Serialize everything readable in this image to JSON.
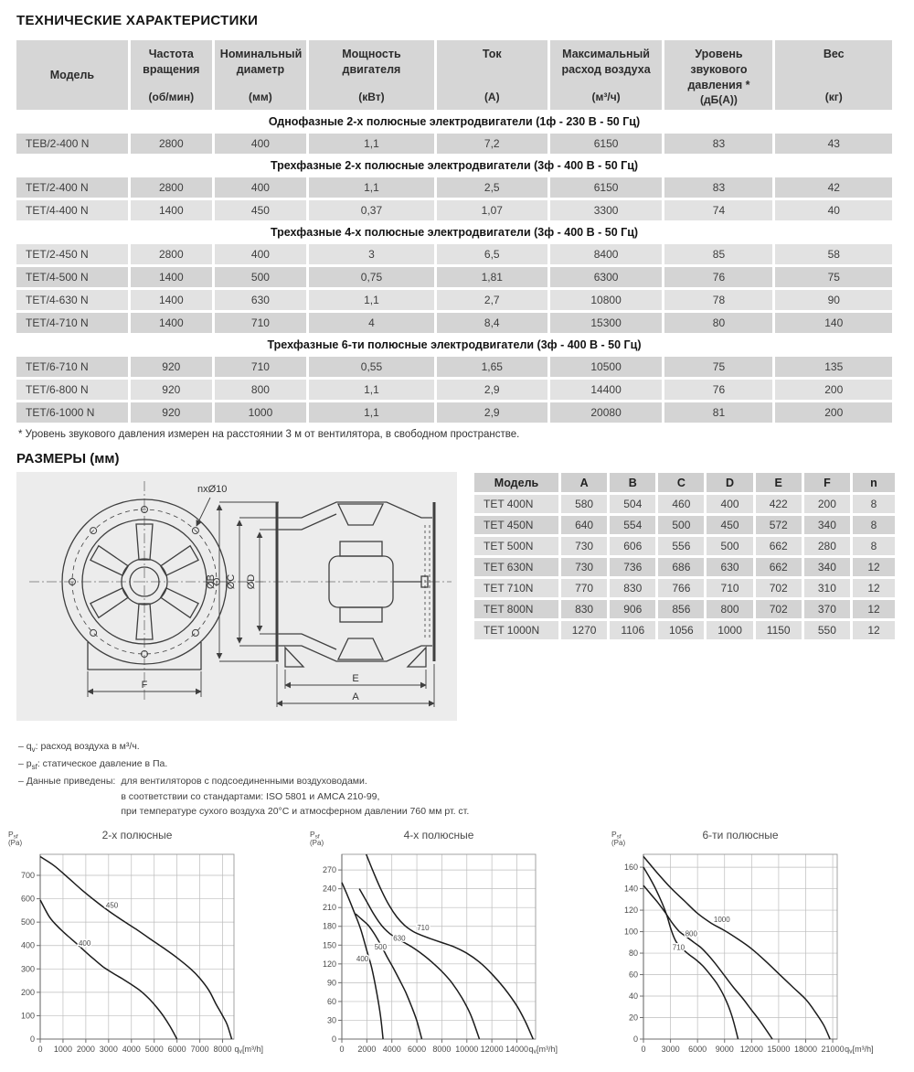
{
  "page": {
    "title": "ТЕХНИЧЕСКИЕ ХАРАКТЕРИСТИКИ",
    "footnote": "* Уровень звукового давления измерен на расстоянии 3 м от вентилятора, в свободном пространстве.",
    "dims_title": "РАЗМЕРЫ (мм)"
  },
  "colors": {
    "row_dark": "#d4d4d4",
    "row_light": "#e2e2e2",
    "header_bg": "#d6d6d6",
    "panel_bg": "#ececec"
  },
  "spec_table": {
    "headers": [
      {
        "title": "Модель",
        "unit": ""
      },
      {
        "title": "Частота вращения",
        "unit": "(об/мин)"
      },
      {
        "title": "Номинальный диаметр",
        "unit": "(мм)"
      },
      {
        "title": "Мощность двигателя",
        "unit": "(кВт)"
      },
      {
        "title": "Ток",
        "unit": "(А)"
      },
      {
        "title": "Максимальный расход воздуха",
        "unit": "(м³/ч)"
      },
      {
        "title": "Уровень звукового давления *",
        "unit": "(дБ(А))"
      },
      {
        "title": "Вес",
        "unit": "(кг)"
      }
    ],
    "sections": [
      {
        "label": "Однофазные 2-х полюсные электродвигатели (1ф - 230 В - 50 Гц)",
        "rows": [
          [
            "TEB/2-400 N",
            "2800",
            "400",
            "1,1",
            "7,2",
            "6150",
            "83",
            "43"
          ]
        ]
      },
      {
        "label": "Трехфазные 2-х полюсные электродвигатели (3ф - 400 В - 50 Гц)",
        "rows": [
          [
            "TET/2-400 N",
            "2800",
            "400",
            "1,1",
            "2,5",
            "6150",
            "83",
            "42"
          ],
          [
            "TET/4-400 N",
            "1400",
            "450",
            "0,37",
            "1,07",
            "3300",
            "74",
            "40"
          ]
        ]
      },
      {
        "label": "Трехфазные 4-х полюсные электродвигатели (3ф - 400 В - 50 Гц)",
        "rows": [
          [
            "TET/2-450 N",
            "2800",
            "400",
            "3",
            "6,5",
            "8400",
            "85",
            "58"
          ],
          [
            "TET/4-500 N",
            "1400",
            "500",
            "0,75",
            "1,81",
            "6300",
            "76",
            "75"
          ],
          [
            "TET/4-630 N",
            "1400",
            "630",
            "1,1",
            "2,7",
            "10800",
            "78",
            "90"
          ],
          [
            "TET/4-710 N",
            "1400",
            "710",
            "4",
            "8,4",
            "15300",
            "80",
            "140"
          ]
        ]
      },
      {
        "label": "Трехфазные 6-ти полюсные электродвигатели (3ф - 400 В - 50 Гц)",
        "rows": [
          [
            "TET/6-710 N",
            "920",
            "710",
            "0,55",
            "1,65",
            "10500",
            "75",
            "135"
          ],
          [
            "TET/6-800 N",
            "920",
            "800",
            "1,1",
            "2,9",
            "14400",
            "76",
            "200"
          ],
          [
            "TET/6-1000 N",
            "920",
            "1000",
            "1,1",
            "2,9",
            "20080",
            "81",
            "200"
          ]
        ]
      }
    ]
  },
  "drawing": {
    "labels": {
      "holes": "nxØ10",
      "diam_b": "ØB",
      "diam_c": "ØC",
      "diam_d": "ØD",
      "dim_e": "E",
      "dim_a": "A",
      "dim_f": "F"
    }
  },
  "dims_table": {
    "headers": [
      "Модель",
      "A",
      "B",
      "C",
      "D",
      "E",
      "F",
      "n"
    ],
    "rows": [
      [
        "TET 400N",
        "580",
        "504",
        "460",
        "400",
        "422",
        "200",
        "8"
      ],
      [
        "TET 450N",
        "640",
        "554",
        "500",
        "450",
        "572",
        "340",
        "8"
      ],
      [
        "TET 500N",
        "730",
        "606",
        "556",
        "500",
        "662",
        "280",
        "8"
      ],
      [
        "TET 630N",
        "730",
        "736",
        "686",
        "630",
        "662",
        "340",
        "12"
      ],
      [
        "TET 710N",
        "770",
        "830",
        "766",
        "710",
        "702",
        "310",
        "12"
      ],
      [
        "TET 800N",
        "830",
        "906",
        "856",
        "800",
        "702",
        "370",
        "12"
      ],
      [
        "TET 1000N",
        "1270",
        "1106",
        "1056",
        "1000",
        "1150",
        "550",
        "12"
      ]
    ]
  },
  "notes": {
    "qv_pre": "– q",
    "qv_sub": "v",
    "qv_post": ": расход воздуха в м³/ч.",
    "psf_pre": "– p",
    "psf_sub": "sf",
    "psf_post": ": статическое давление в Па.",
    "data_label": "– Данные приведены:",
    "data_items": [
      "для вентиляторов с подсоединенными воздуховодами.",
      "в соответствии со стандартами: ISO 5801 и AMCA 210-99,",
      "при температуре сухого воздуха 20°С и атмосферном давлении 760 мм рт. ст."
    ]
  },
  "chart_data": [
    {
      "type": "line",
      "title": "2-х полюсные",
      "ylabel": "Psf (Pa)",
      "xlabel": "qv [m³/h]",
      "ylabel_parts": {
        "sym": "P",
        "sub": "sf",
        "unit": "(Pa)"
      },
      "xlabel_parts": {
        "sym": "q",
        "sub": "v",
        "unit": "[m³/h]"
      },
      "xlim": [
        0,
        8500
      ],
      "ylim": [
        0,
        790
      ],
      "xticks": [
        0,
        1000,
        2000,
        3000,
        4000,
        5000,
        6000,
        7000,
        8000
      ],
      "yticks": [
        0,
        100,
        200,
        300,
        400,
        500,
        600,
        700
      ],
      "grid": true,
      "legend": "curve-labels",
      "series": [
        {
          "name": "450",
          "label_at": [
            3150,
            562
          ],
          "points": [
            [
              0,
              780
            ],
            [
              600,
              742
            ],
            [
              1200,
              692
            ],
            [
              1800,
              640
            ],
            [
              2400,
              592
            ],
            [
              3000,
              548
            ],
            [
              3600,
              508
            ],
            [
              4200,
              470
            ],
            [
              4800,
              430
            ],
            [
              5400,
              390
            ],
            [
              6000,
              348
            ],
            [
              6600,
              300
            ],
            [
              7000,
              260
            ],
            [
              7400,
              208
            ],
            [
              7700,
              152
            ],
            [
              8000,
              100
            ],
            [
              8200,
              62
            ],
            [
              8400,
              0
            ]
          ]
        },
        {
          "name": "400",
          "label_at": [
            1950,
            398
          ],
          "points": [
            [
              0,
              595
            ],
            [
              400,
              523
            ],
            [
              800,
              478
            ],
            [
              1200,
              442
            ],
            [
              1600,
              408
            ],
            [
              2000,
              372
            ],
            [
              2400,
              338
            ],
            [
              2800,
              306
            ],
            [
              3200,
              281
            ],
            [
              3600,
              258
            ],
            [
              4000,
              233
            ],
            [
              4400,
              206
            ],
            [
              4800,
              170
            ],
            [
              5100,
              137
            ],
            [
              5400,
              99
            ],
            [
              5700,
              53
            ],
            [
              6000,
              0
            ]
          ]
        }
      ]
    },
    {
      "type": "line",
      "title": "4-х полюсные",
      "ylabel": "Psf (Pa)",
      "xlabel": "qv [m³/h]",
      "ylabel_parts": {
        "sym": "P",
        "sub": "sf",
        "unit": "(Pa)"
      },
      "xlabel_parts": {
        "sym": "q",
        "sub": "v",
        "unit": "[m³/h]"
      },
      "xlim": [
        0,
        15500
      ],
      "ylim": [
        0,
        295
      ],
      "xticks": [
        0,
        2000,
        4000,
        6000,
        8000,
        10000,
        12000,
        14000
      ],
      "yticks": [
        0,
        30,
        60,
        90,
        120,
        150,
        180,
        210,
        240,
        270
      ],
      "grid": true,
      "legend": "curve-labels",
      "series": [
        {
          "name": "400",
          "label_at": [
            1650,
            124
          ],
          "points": [
            [
              0,
              250
            ],
            [
              500,
              227
            ],
            [
              1000,
              202
            ],
            [
              1500,
              176
            ],
            [
              2000,
              141
            ],
            [
              2400,
              113
            ],
            [
              2800,
              73
            ],
            [
              3100,
              36
            ],
            [
              3300,
              0
            ]
          ]
        },
        {
          "name": "500",
          "label_at": [
            3100,
            143
          ],
          "points": [
            [
              1100,
              200
            ],
            [
              1600,
              191
            ],
            [
              2100,
              182
            ],
            [
              2600,
              168
            ],
            [
              3100,
              151
            ],
            [
              3600,
              132
            ],
            [
              4100,
              114
            ],
            [
              4600,
              95
            ],
            [
              5100,
              75
            ],
            [
              5600,
              51
            ],
            [
              6000,
              29
            ],
            [
              6400,
              0
            ]
          ]
        },
        {
          "name": "630",
          "label_at": [
            4600,
            157
          ],
          "points": [
            [
              1400,
              240
            ],
            [
              2000,
              219
            ],
            [
              2600,
              198
            ],
            [
              3200,
              181
            ],
            [
              3800,
              169
            ],
            [
              4400,
              161
            ],
            [
              5000,
              154
            ],
            [
              5600,
              147
            ],
            [
              6400,
              136
            ],
            [
              7200,
              123
            ],
            [
              8000,
              108
            ],
            [
              8800,
              90
            ],
            [
              9600,
              66
            ],
            [
              10300,
              39
            ],
            [
              11000,
              0
            ]
          ]
        },
        {
          "name": "710",
          "label_at": [
            6500,
            174
          ],
          "points": [
            [
              1950,
              295
            ],
            [
              2600,
              263
            ],
            [
              3200,
              236
            ],
            [
              3800,
              213
            ],
            [
              4400,
              195
            ],
            [
              5000,
              182
            ],
            [
              5600,
              173
            ],
            [
              6200,
              167
            ],
            [
              7000,
              161
            ],
            [
              8000,
              154
            ],
            [
              9000,
              147
            ],
            [
              10000,
              137
            ],
            [
              11000,
              123
            ],
            [
              12000,
              104
            ],
            [
              13000,
              81
            ],
            [
              14000,
              53
            ],
            [
              14700,
              27
            ],
            [
              15300,
              0
            ]
          ]
        }
      ]
    },
    {
      "type": "line",
      "title": "6-ти полюсные",
      "ylabel": "Psf (Pa)",
      "xlabel": "qv [m³/h]",
      "ylabel_parts": {
        "sym": "P",
        "sub": "sf",
        "unit": "(Pa)"
      },
      "xlabel_parts": {
        "sym": "q",
        "sub": "v",
        "unit": "[m³/h]"
      },
      "xlim": [
        0,
        21500
      ],
      "ylim": [
        0,
        172
      ],
      "xticks": [
        0,
        3000,
        6000,
        9000,
        12000,
        15000,
        18000,
        21000
      ],
      "yticks": [
        0,
        20,
        40,
        60,
        80,
        100,
        120,
        140,
        160
      ],
      "grid": true,
      "legend": "curve-labels",
      "series": [
        {
          "name": "710",
          "label_at": [
            3900,
            83
          ],
          "points": [
            [
              0,
              160
            ],
            [
              700,
              150
            ],
            [
              1400,
              139
            ],
            [
              2100,
              126
            ],
            [
              2600,
              115
            ],
            [
              3100,
              101
            ],
            [
              3600,
              91
            ],
            [
              4200,
              85
            ],
            [
              5000,
              79
            ],
            [
              5800,
              74
            ],
            [
              6600,
              68
            ],
            [
              7400,
              60
            ],
            [
              8200,
              51
            ],
            [
              9000,
              39
            ],
            [
              9800,
              22
            ],
            [
              10500,
              0
            ]
          ]
        },
        {
          "name": "800",
          "label_at": [
            5300,
            96
          ],
          "points": [
            [
              0,
              143
            ],
            [
              800,
              135
            ],
            [
              1600,
              127
            ],
            [
              2400,
              118
            ],
            [
              3200,
              108
            ],
            [
              4000,
              100
            ],
            [
              4800,
              95
            ],
            [
              5600,
              90
            ],
            [
              6400,
              85
            ],
            [
              7200,
              78
            ],
            [
              8000,
              70
            ],
            [
              9000,
              59
            ],
            [
              10000,
              48
            ],
            [
              11000,
              38
            ],
            [
              12000,
              27
            ],
            [
              13000,
              16
            ],
            [
              14300,
              0
            ]
          ]
        },
        {
          "name": "1000",
          "label_at": [
            8700,
            109
          ],
          "points": [
            [
              0,
              170
            ],
            [
              1500,
              155
            ],
            [
              3000,
              141
            ],
            [
              4500,
              129
            ],
            [
              6000,
              117
            ],
            [
              7500,
              108
            ],
            [
              9000,
              101
            ],
            [
              10500,
              93
            ],
            [
              12000,
              84
            ],
            [
              13500,
              73
            ],
            [
              15000,
              61
            ],
            [
              16500,
              49
            ],
            [
              18000,
              37
            ],
            [
              19000,
              26
            ],
            [
              20000,
              13
            ],
            [
              20700,
              0
            ]
          ]
        }
      ]
    }
  ]
}
